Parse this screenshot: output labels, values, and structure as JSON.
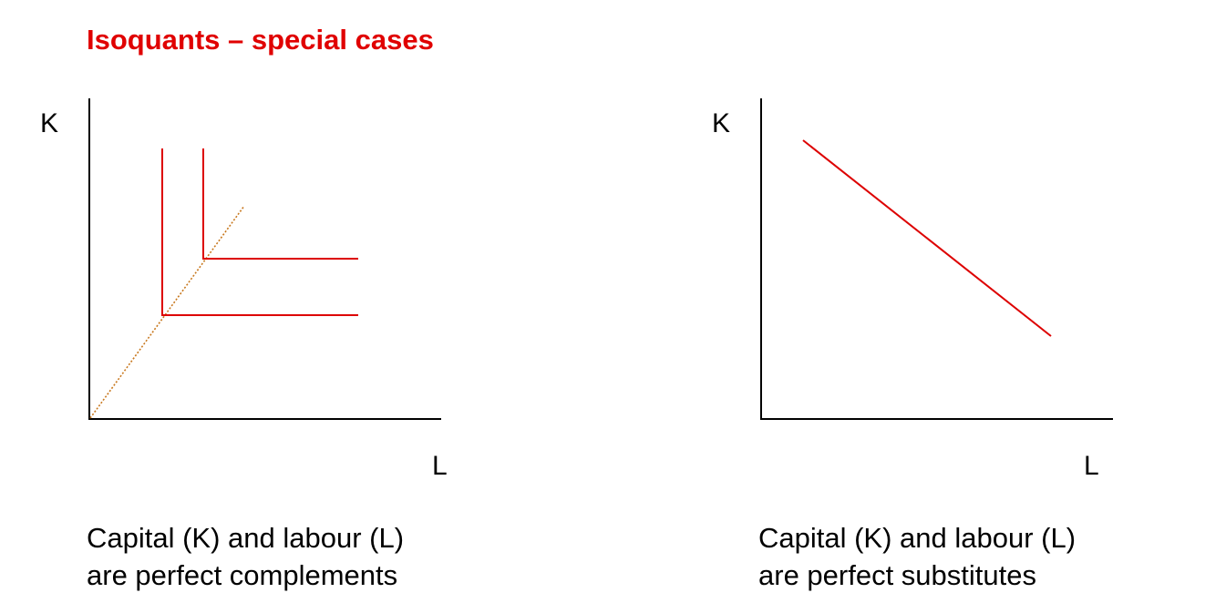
{
  "title": "Isoquants – special cases",
  "colors": {
    "title": "#e00000",
    "isoquant": "#dd0000",
    "expansion_path": "#c8781e",
    "axis": "#000000"
  },
  "left_panel": {
    "y_axis_label": "K",
    "x_axis_label": "L",
    "caption_line1": "Capital (K) and labour (L)",
    "caption_line2": "are perfect complements"
  },
  "right_panel": {
    "y_axis_label": "K",
    "x_axis_label": "L",
    "caption_line1": "Capital (K) and labour (L)",
    "caption_line2": "are perfect substitutes"
  }
}
